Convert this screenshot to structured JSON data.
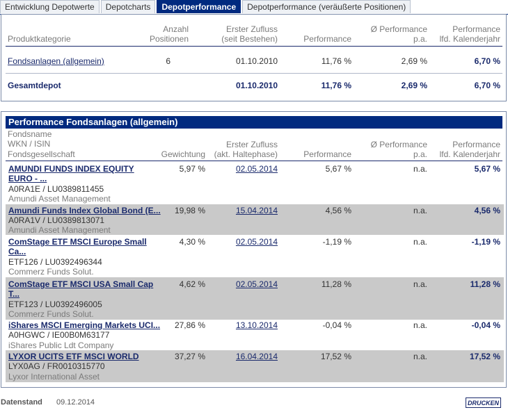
{
  "tabs": [
    {
      "label": "Entwicklung Depotwerte"
    },
    {
      "label": "Depotcharts"
    },
    {
      "label": "Depotperformance"
    },
    {
      "label": "Depotperformance (veräußerte Positionen)"
    }
  ],
  "summary": {
    "headers": {
      "category": "Produktkategorie",
      "count_line1": "Anzahl",
      "count_line2": "Positionen",
      "first_line1": "Erster Zufluss",
      "first_line2": "(seit Bestehen)",
      "performance": "Performance",
      "avg_line1": "Ø Performance",
      "avg_line2": "p.a.",
      "ytd_line1": "Performance",
      "ytd_line2": "lfd. Kalenderjahr"
    },
    "row": {
      "category": "Fondsanlagen (allgemein)",
      "count": "6",
      "first": "01.10.2010",
      "performance": "11,76 %",
      "avg": "2,69 %",
      "ytd": "6,70 %"
    },
    "total": {
      "category": "Gesamtdepot",
      "first": "01.10.2010",
      "performance": "11,76 %",
      "avg": "2,69 %",
      "ytd": "6,70 %"
    }
  },
  "detail": {
    "title": "Performance Fondsanlagen (allgemein)",
    "headers": {
      "name_line1": "Fondsname",
      "name_line2": "WKN / ISIN",
      "name_line3": "Fondsgesellschaft",
      "weight": "Gewichtung",
      "first_line1": "Erster Zufluss",
      "first_line2": "(akt. Haltephase)",
      "performance": "Performance",
      "avg_line1": "Ø Performance",
      "avg_line2": "p.a.",
      "ytd_line1": "Performance",
      "ytd_line2": "lfd. Kalenderjahr"
    },
    "rows": [
      {
        "name": "AMUNDI FUNDS INDEX EQUITY EURO - ...",
        "ids": "A0RA1E /  LU0389811455",
        "company": "Amundi Asset Management",
        "weight": "5,97 %",
        "first": "02.05.2014",
        "performance": "5,67 %",
        "avg": "n.a.",
        "ytd": "5,67 %"
      },
      {
        "name": "Amundi Funds Index Global Bond (E...",
        "ids": "A0RA1V /  LU0389813071",
        "company": "Amundi Asset Management",
        "weight": "19,98 %",
        "first": "15.04.2014",
        "performance": "4,56 %",
        "avg": "n.a.",
        "ytd": "4,56 %"
      },
      {
        "name": "ComStage ETF MSCI Europe Small Ca...",
        "ids": "ETF126 /  LU0392496344",
        "company": "Commerz Funds Solut.",
        "weight": "4,30 %",
        "first": "02.05.2014",
        "performance": "-1,19 %",
        "avg": "n.a.",
        "ytd": "-1,19 %"
      },
      {
        "name": "ComStage ETF MSCI USA Small Cap T...",
        "ids": "ETF123 /  LU0392496005",
        "company": "Commerz Funds Solut.",
        "weight": "4,62 %",
        "first": "02.05.2014",
        "performance": "11,28 %",
        "avg": "n.a.",
        "ytd": "11,28 %"
      },
      {
        "name": "iShares MSCI Emerging Markets UCI...",
        "ids": "A0HGWC /  IE00B0M63177",
        "company": "iShares Public Ldt Company",
        "weight": "27,86 %",
        "first": "13.10.2014",
        "performance": "-0,04 %",
        "avg": "n.a.",
        "ytd": "-0,04 %"
      },
      {
        "name": "LYXOR UCITS ETF MSCI WORLD",
        "ids": "LYX0AG /  FR0010315770",
        "company": "Lyxor International Asset",
        "weight": "37,27 %",
        "first": "16.04.2014",
        "performance": "17,52 %",
        "avg": "n.a.",
        "ytd": "17,52 %"
      }
    ]
  },
  "footer": {
    "label": "Datenstand",
    "date": "09.12.2014",
    "print_label": "DRUCKEN"
  }
}
